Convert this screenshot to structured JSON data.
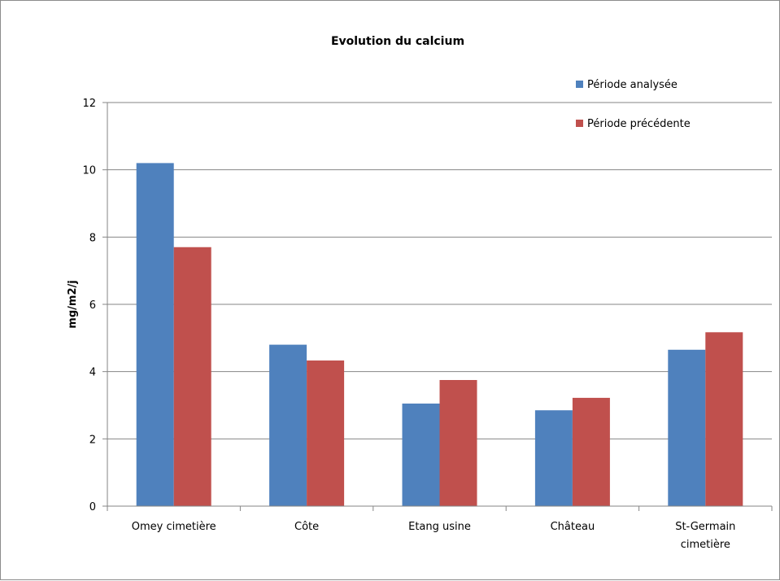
{
  "chart_data": {
    "type": "bar",
    "title": "Evolution du calcium",
    "xlabel": "",
    "ylabel": "mg/m2/j",
    "ylim": [
      0,
      12
    ],
    "yticks": [
      0,
      2,
      4,
      6,
      8,
      10,
      12
    ],
    "grid": true,
    "legend_position": "top-right",
    "categories": [
      [
        "Omey cimetière"
      ],
      [
        "Côte"
      ],
      [
        "Etang usine"
      ],
      [
        "Château"
      ],
      [
        "St-Germain",
        "cimetière"
      ]
    ],
    "series": [
      {
        "name": "Période analysée",
        "color": "#4f81bd",
        "values": [
          10.2,
          4.8,
          3.05,
          2.85,
          4.65
        ]
      },
      {
        "name": "Période précédente",
        "color": "#c0504d",
        "values": [
          7.7,
          4.33,
          3.75,
          3.22,
          5.17
        ]
      }
    ]
  }
}
